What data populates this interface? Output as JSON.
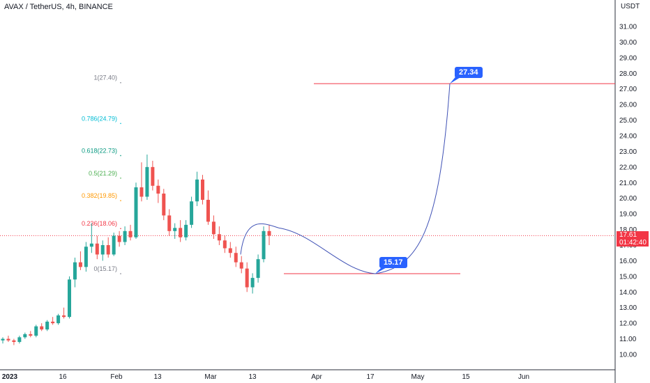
{
  "header": {
    "title": "AVAX / TetherUS, 4h, BINANCE",
    "price_unit": "USDT"
  },
  "colors": {
    "up_candle": "#26a69a",
    "down_candle": "#ef5350",
    "curve": "#3f51b5",
    "target_line": "#f23645",
    "callout_bg": "#2962ff",
    "current_price_line": "#f23645"
  },
  "chart_data": {
    "type": "line",
    "symbol": "AVAX / TetherUS",
    "interval": "4h",
    "exchange": "BINANCE",
    "y_axis": {
      "ticks": [
        "31.00",
        "30.00",
        "29.00",
        "28.00",
        "27.00",
        "26.00",
        "25.00",
        "24.00",
        "23.00",
        "22.00",
        "21.00",
        "20.00",
        "19.00",
        "18.00",
        "17.00",
        "16.00",
        "15.00",
        "14.00",
        "13.00",
        "12.00",
        "11.00",
        "10.00"
      ],
      "range": [
        9.3,
        32.0
      ]
    },
    "x_axis": {
      "ticks": [
        "2023",
        "16",
        "Feb",
        "13",
        "Mar",
        "13",
        "Apr",
        "17",
        "May",
        "15",
        "Jun"
      ]
    },
    "current_price": {
      "value": "17.61",
      "countdown": "01:42:40"
    },
    "fib_levels": [
      {
        "label": "1(27.40)",
        "value": 27.4,
        "color": "#787b86"
      },
      {
        "label": "0.786(24.79)",
        "value": 24.79,
        "color": "#00bcd4"
      },
      {
        "label": "0.618(22.73)",
        "value": 22.73,
        "color": "#089981"
      },
      {
        "label": "0.5(21.29)",
        "value": 21.29,
        "color": "#4caf50"
      },
      {
        "label": "0.382(19.85)",
        "value": 19.85,
        "color": "#ff9800"
      },
      {
        "label": "0.236(18.06)",
        "value": 18.06,
        "color": "#f23645"
      },
      {
        "label": "0(15.17)",
        "value": 15.17,
        "color": "#787b86"
      }
    ],
    "targets": [
      {
        "label": "15.17",
        "value": 15.17
      },
      {
        "label": "27.34",
        "value": 27.34
      }
    ],
    "candles_approx": [
      [
        10.9,
        11.1,
        10.7,
        11.0
      ],
      [
        11.0,
        11.2,
        10.8,
        10.9
      ],
      [
        10.9,
        11.0,
        10.6,
        10.8
      ],
      [
        10.8,
        11.2,
        10.7,
        11.1
      ],
      [
        11.1,
        11.4,
        11.0,
        11.3
      ],
      [
        11.3,
        11.5,
        11.1,
        11.2
      ],
      [
        11.2,
        11.9,
        11.1,
        11.8
      ],
      [
        11.8,
        12.0,
        11.5,
        11.6
      ],
      [
        11.6,
        12.2,
        11.5,
        12.1
      ],
      [
        12.1,
        12.4,
        11.9,
        12.0
      ],
      [
        12.0,
        12.6,
        11.9,
        12.5
      ],
      [
        12.5,
        13.0,
        12.3,
        12.4
      ],
      [
        12.4,
        15.0,
        12.3,
        14.8
      ],
      [
        14.8,
        16.2,
        14.3,
        15.9
      ],
      [
        15.9,
        16.6,
        15.4,
        15.6
      ],
      [
        15.6,
        17.2,
        15.3,
        16.9
      ],
      [
        16.9,
        18.4,
        16.5,
        17.1
      ],
      [
        17.1,
        17.6,
        16.1,
        16.4
      ],
      [
        16.4,
        17.3,
        16.0,
        17.0
      ],
      [
        17.0,
        17.5,
        16.2,
        16.4
      ],
      [
        16.4,
        17.8,
        16.3,
        17.6
      ],
      [
        17.6,
        17.9,
        16.9,
        17.2
      ],
      [
        17.2,
        18.2,
        17.0,
        17.9
      ],
      [
        17.9,
        18.3,
        17.3,
        17.5
      ],
      [
        17.5,
        21.0,
        17.4,
        20.7
      ],
      [
        20.7,
        22.3,
        19.8,
        20.1
      ],
      [
        20.1,
        22.8,
        19.9,
        22.0
      ],
      [
        22.0,
        22.4,
        20.5,
        20.8
      ],
      [
        20.8,
        21.2,
        19.7,
        20.3
      ],
      [
        20.3,
        20.6,
        18.6,
        18.9
      ],
      [
        18.9,
        19.3,
        17.6,
        17.9
      ],
      [
        17.9,
        18.4,
        17.4,
        18.1
      ],
      [
        18.1,
        18.6,
        17.2,
        17.5
      ],
      [
        17.5,
        18.6,
        17.3,
        18.3
      ],
      [
        18.3,
        20.1,
        18.1,
        19.8
      ],
      [
        19.8,
        21.7,
        19.5,
        21.2
      ],
      [
        21.2,
        21.5,
        19.6,
        19.9
      ],
      [
        19.9,
        20.5,
        18.3,
        18.5
      ],
      [
        18.5,
        18.9,
        17.4,
        17.7
      ],
      [
        17.7,
        18.2,
        17.0,
        17.3
      ],
      [
        17.3,
        17.6,
        16.5,
        16.8
      ],
      [
        16.8,
        17.2,
        16.2,
        16.5
      ],
      [
        16.5,
        16.9,
        15.6,
        15.9
      ],
      [
        15.9,
        16.3,
        15.2,
        15.5
      ],
      [
        15.5,
        15.9,
        14.0,
        14.3
      ],
      [
        14.3,
        15.2,
        13.9,
        14.9
      ],
      [
        14.9,
        16.4,
        14.6,
        16.1
      ],
      [
        16.1,
        18.2,
        15.9,
        17.9
      ],
      [
        17.9,
        18.3,
        17.0,
        17.61
      ]
    ],
    "projection_curve": [
      {
        "t": "Mar 13",
        "y": 16.4
      },
      {
        "t": "Mar 20",
        "y": 18.1
      },
      {
        "t": "Apr 05",
        "y": 16.6
      },
      {
        "t": "Apr 17",
        "y": 15.17
      },
      {
        "t": "May 01",
        "y": 17.5
      },
      {
        "t": "May 10",
        "y": 27.34
      }
    ]
  }
}
